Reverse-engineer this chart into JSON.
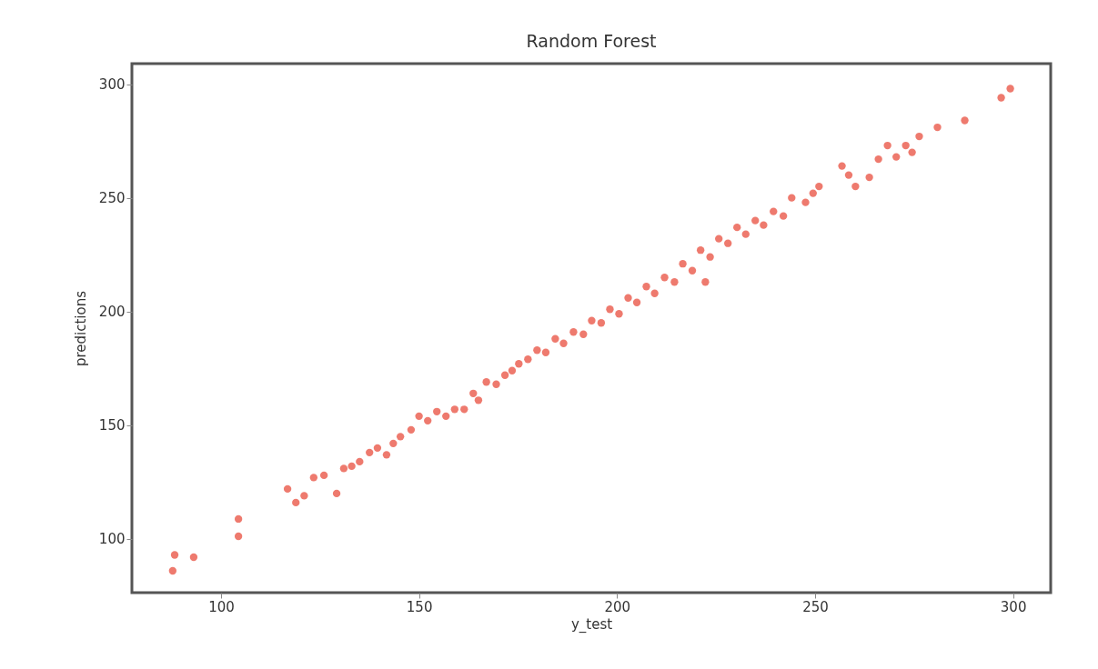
{
  "chart_data": {
    "type": "scatter",
    "title": "Random Forest",
    "xlabel": "y_test",
    "ylabel": "predictions",
    "marker": "circle",
    "xlim": [
      77.5,
      309.5
    ],
    "ylim": [
      76.4,
      309
    ],
    "xticks": [
      100,
      150,
      200,
      250,
      300
    ],
    "yticks": [
      100,
      150,
      200,
      250,
      300
    ],
    "series": [
      {
        "color": "#ec6b5e",
        "x": [
          87.8,
          88.3,
          93.1,
          104.4,
          104.4,
          116.8,
          118.9,
          121,
          123.4,
          126,
          129.2,
          131,
          133,
          135,
          137.5,
          139.5,
          141.8,
          143.5,
          145.3,
          148,
          150,
          152.2,
          154.5,
          156.8,
          159,
          161.4,
          163.7,
          165,
          167,
          169.5,
          171.7,
          173.5,
          175.2,
          177.5,
          179.8,
          182,
          184.4,
          186.5,
          189,
          191.5,
          193.6,
          196,
          198.2,
          200.5,
          202.8,
          205,
          207.4,
          209.5,
          212,
          214.5,
          216.6,
          219,
          221.1,
          222.3,
          223.5,
          225.7,
          228,
          230.3,
          232.5,
          234.9,
          237,
          239.5,
          242,
          244.1,
          247.6,
          249.5,
          251,
          256.8,
          258.5,
          260.2,
          263.7,
          266,
          268.3,
          270.5,
          272.9,
          274.5,
          276.3,
          280.9,
          287.8,
          297,
          299.3
        ],
        "values": [
          86,
          93,
          92,
          108.8,
          101.2,
          122,
          116,
          119,
          127,
          128,
          120,
          131,
          132,
          134,
          138,
          140,
          137,
          142,
          145,
          148,
          154,
          152,
          156,
          154,
          157,
          157,
          164,
          161,
          169,
          168,
          172,
          174,
          177,
          179,
          183,
          182,
          188,
          186,
          191,
          190,
          196,
          195,
          201,
          199,
          206,
          204,
          211,
          208,
          215,
          213,
          221,
          218,
          227,
          213,
          224,
          232,
          230,
          237,
          234,
          240,
          238,
          244,
          242,
          250,
          248,
          252,
          255,
          264,
          260,
          255,
          259,
          267,
          273,
          268,
          273,
          270,
          277,
          281,
          284,
          294,
          298
        ]
      }
    ]
  }
}
